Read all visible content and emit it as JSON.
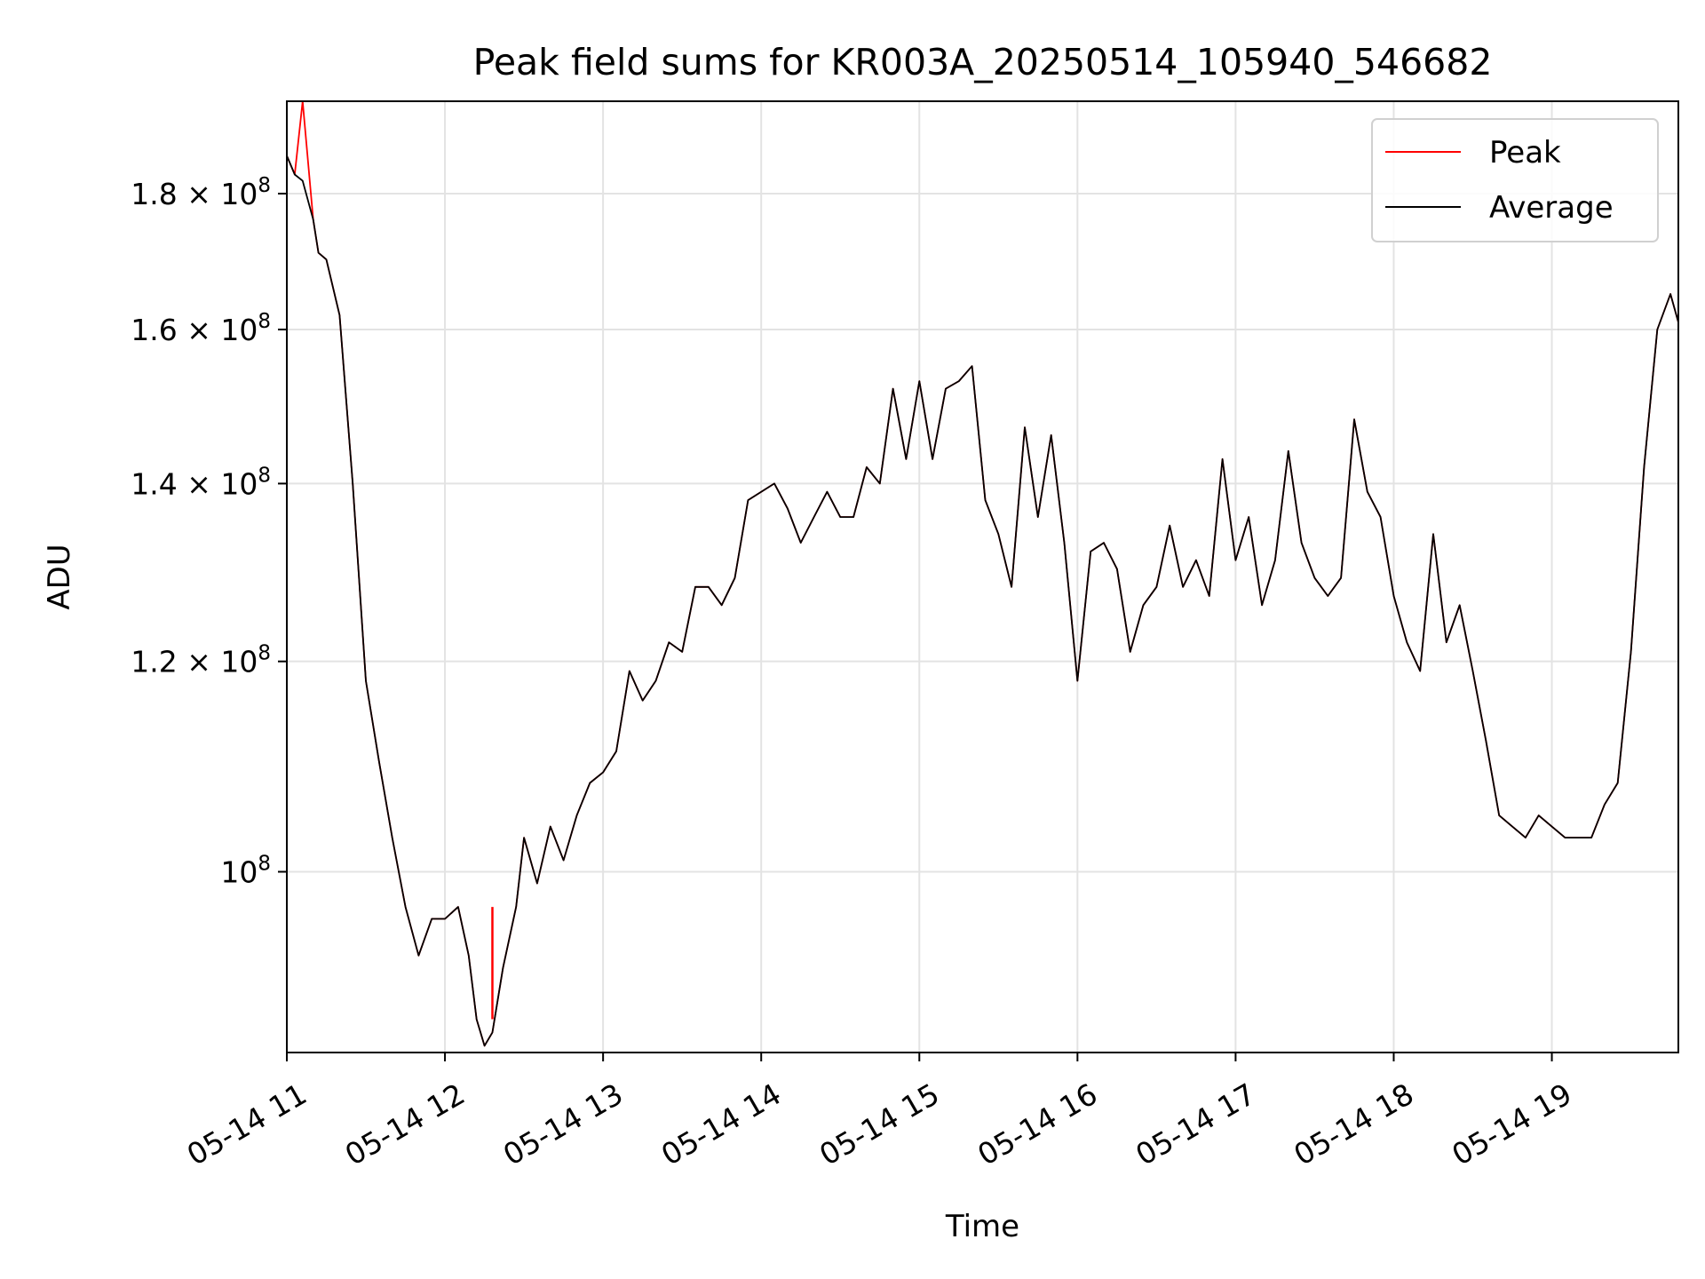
{
  "chart_data": {
    "type": "line",
    "title": "Peak field sums for KR003A_20250514_105940_546682",
    "xlabel": "Time",
    "ylabel": "ADU",
    "y_scale": "log",
    "ylim": [
      85500000,
      195000000
    ],
    "xlim": [
      "05-14 11:00",
      "05-14 19:48"
    ],
    "grid": true,
    "legend_position": "top-right",
    "x_ticks": [
      "05-14 11",
      "05-14 12",
      "05-14 13",
      "05-14 14",
      "05-14 15",
      "05-14 16",
      "05-14 17",
      "05-14 18",
      "05-14 19"
    ],
    "y_ticks": [
      {
        "value": 100000000,
        "mantissa": "",
        "exponent": "8"
      },
      {
        "value": 120000000,
        "mantissa": "1.2",
        "exponent": "8"
      },
      {
        "value": 140000000,
        "mantissa": "1.4",
        "exponent": "8"
      },
      {
        "value": 160000000,
        "mantissa": "1.6",
        "exponent": "8"
      },
      {
        "value": 180000000,
        "mantissa": "1.8",
        "exponent": "8"
      }
    ],
    "x": [
      "05-14 11:00",
      "05-14 11:03",
      "05-14 11:06",
      "05-14 11:10",
      "05-14 11:12",
      "05-14 11:15",
      "05-14 11:20",
      "05-14 11:25",
      "05-14 11:30",
      "05-14 11:35",
      "05-14 11:40",
      "05-14 11:45",
      "05-14 11:50",
      "05-14 11:55",
      "05-14 12:00",
      "05-14 12:05",
      "05-14 12:09",
      "05-14 12:12",
      "05-14 12:15",
      "05-14 12:18",
      "05-14 12:22",
      "05-14 12:27",
      "05-14 12:30",
      "05-14 12:35",
      "05-14 12:40",
      "05-14 12:45",
      "05-14 12:50",
      "05-14 12:55",
      "05-14 13:00",
      "05-14 13:05",
      "05-14 13:10",
      "05-14 13:15",
      "05-14 13:20",
      "05-14 13:25",
      "05-14 13:30",
      "05-14 13:35",
      "05-14 13:40",
      "05-14 13:45",
      "05-14 13:50",
      "05-14 13:55",
      "05-14 14:00",
      "05-14 14:05",
      "05-14 14:10",
      "05-14 14:15",
      "05-14 14:20",
      "05-14 14:25",
      "05-14 14:30",
      "05-14 14:35",
      "05-14 14:40",
      "05-14 14:45",
      "05-14 14:50",
      "05-14 14:55",
      "05-14 15:00",
      "05-14 15:05",
      "05-14 15:10",
      "05-14 15:15",
      "05-14 15:20",
      "05-14 15:25",
      "05-14 15:30",
      "05-14 15:35",
      "05-14 15:40",
      "05-14 15:45",
      "05-14 15:50",
      "05-14 15:55",
      "05-14 16:00",
      "05-14 16:05",
      "05-14 16:10",
      "05-14 16:15",
      "05-14 16:20",
      "05-14 16:25",
      "05-14 16:30",
      "05-14 16:35",
      "05-14 16:40",
      "05-14 16:45",
      "05-14 16:50",
      "05-14 16:55",
      "05-14 17:00",
      "05-14 17:05",
      "05-14 17:10",
      "05-14 17:15",
      "05-14 17:20",
      "05-14 17:25",
      "05-14 17:30",
      "05-14 17:35",
      "05-14 17:40",
      "05-14 17:45",
      "05-14 17:50",
      "05-14 17:55",
      "05-14 18:00",
      "05-14 18:05",
      "05-14 18:10",
      "05-14 18:15",
      "05-14 18:20",
      "05-14 18:25",
      "05-14 18:30",
      "05-14 18:35",
      "05-14 18:40",
      "05-14 18:45",
      "05-14 18:50",
      "05-14 18:55",
      "05-14 19:00",
      "05-14 19:05",
      "05-14 19:10",
      "05-14 19:15",
      "05-14 19:20",
      "05-14 19:25",
      "05-14 19:30",
      "05-14 19:35",
      "05-14 19:40",
      "05-14 19:45",
      "05-14 19:48"
    ],
    "series": [
      {
        "name": "Peak",
        "color": "#ff0000",
        "values": [
          186000000,
          183000000,
          195000000,
          176000000,
          171000000,
          170000000,
          162000000,
          140000000,
          118000000,
          110000000,
          103000000,
          97000000,
          93000000,
          96000000,
          96000000,
          97000000,
          93000000,
          88000000,
          86000000,
          87000000,
          92000000,
          97000000,
          103000000,
          99000000,
          104000000,
          101000000,
          105000000,
          108000000,
          109000000,
          111000000,
          119000000,
          116000000,
          118000000,
          122000000,
          121000000,
          128000000,
          128000000,
          126000000,
          129000000,
          138000000,
          139000000,
          140000000,
          137000000,
          133000000,
          136000000,
          139000000,
          136000000,
          136000000,
          142000000,
          140000000,
          152000000,
          143000000,
          153000000,
          143000000,
          152000000,
          153000000,
          155000000,
          138000000,
          134000000,
          128000000,
          147000000,
          136000000,
          146000000,
          133000000,
          118000000,
          132000000,
          133000000,
          130000000,
          121000000,
          126000000,
          128000000,
          135000000,
          128000000,
          131000000,
          127000000,
          143000000,
          131000000,
          136000000,
          126000000,
          131000000,
          144000000,
          133000000,
          129000000,
          127000000,
          129000000,
          148000000,
          139000000,
          136000000,
          127000000,
          122000000,
          119000000,
          134000000,
          122000000,
          126000000,
          119000000,
          112000000,
          105000000,
          104000000,
          103000000,
          105000000,
          104000000,
          103000000,
          103000000,
          103000000,
          106000000,
          108000000,
          121000000,
          142000000,
          160000000,
          165000000,
          161000000
        ]
      },
      {
        "name": "Average",
        "color": "#000000",
        "values": [
          186000000,
          183000000,
          182000000,
          176000000,
          171000000,
          170000000,
          162000000,
          140000000,
          118000000,
          110000000,
          103000000,
          97000000,
          93000000,
          96000000,
          96000000,
          97000000,
          93000000,
          88000000,
          86000000,
          87000000,
          92000000,
          97000000,
          103000000,
          99000000,
          104000000,
          101000000,
          105000000,
          108000000,
          109000000,
          111000000,
          119000000,
          116000000,
          118000000,
          122000000,
          121000000,
          128000000,
          128000000,
          126000000,
          129000000,
          138000000,
          139000000,
          140000000,
          137000000,
          133000000,
          136000000,
          139000000,
          136000000,
          136000000,
          142000000,
          140000000,
          152000000,
          143000000,
          153000000,
          143000000,
          152000000,
          153000000,
          155000000,
          138000000,
          134000000,
          128000000,
          147000000,
          136000000,
          146000000,
          133000000,
          118000000,
          132000000,
          133000000,
          130000000,
          121000000,
          126000000,
          128000000,
          135000000,
          128000000,
          131000000,
          127000000,
          143000000,
          131000000,
          136000000,
          126000000,
          131000000,
          144000000,
          133000000,
          129000000,
          127000000,
          129000000,
          148000000,
          139000000,
          136000000,
          127000000,
          122000000,
          119000000,
          134000000,
          122000000,
          126000000,
          119000000,
          112000000,
          105000000,
          104000000,
          103000000,
          105000000,
          104000000,
          103000000,
          103000000,
          103000000,
          106000000,
          108000000,
          121000000,
          142000000,
          160000000,
          165000000,
          161000000
        ]
      }
    ],
    "annotations": [
      {
        "series": "Peak",
        "type": "spike",
        "x": "05-14 12:18",
        "y_from": 88000000,
        "y_to": 97000000
      }
    ]
  }
}
